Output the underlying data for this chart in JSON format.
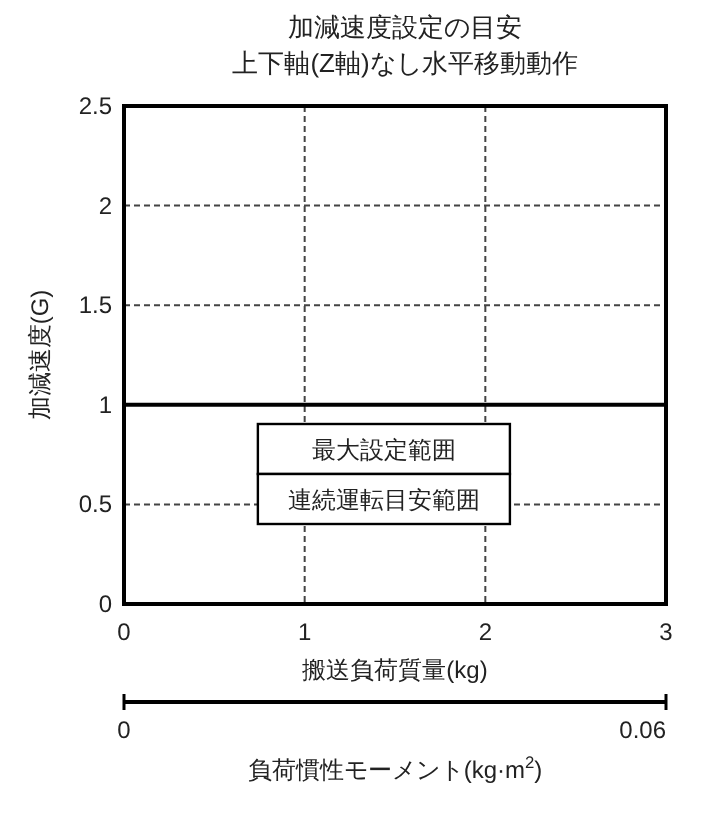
{
  "chart_data": {
    "type": "line",
    "title": "加減速度設定の目安",
    "subtitle": "上下軸(Z軸)なし水平移動動作",
    "xlabel": "搬送負荷質量(kg)",
    "ylabel": "加減速度(G)",
    "x2label": "負荷慣性モーメント(kg·m$^{2}$)",
    "series": [
      {
        "color": "#000000",
        "x": [
          0,
          3
        ],
        "values": [
          1,
          1
        ]
      }
    ],
    "xlim": [
      0,
      3
    ],
    "xticks": [
      0,
      1,
      2,
      3
    ],
    "ylim": [
      0,
      2.5
    ],
    "yticks": [
      0,
      0.5,
      1,
      1.5,
      2,
      2.5
    ],
    "x2lim": [
      0,
      0.06
    ],
    "x2ticks": [
      0,
      0.06
    ],
    "grid": true,
    "line_style": "solid",
    "marker": "none",
    "annotations": [
      "最大設定範囲",
      "連続運転目安範囲"
    ]
  }
}
